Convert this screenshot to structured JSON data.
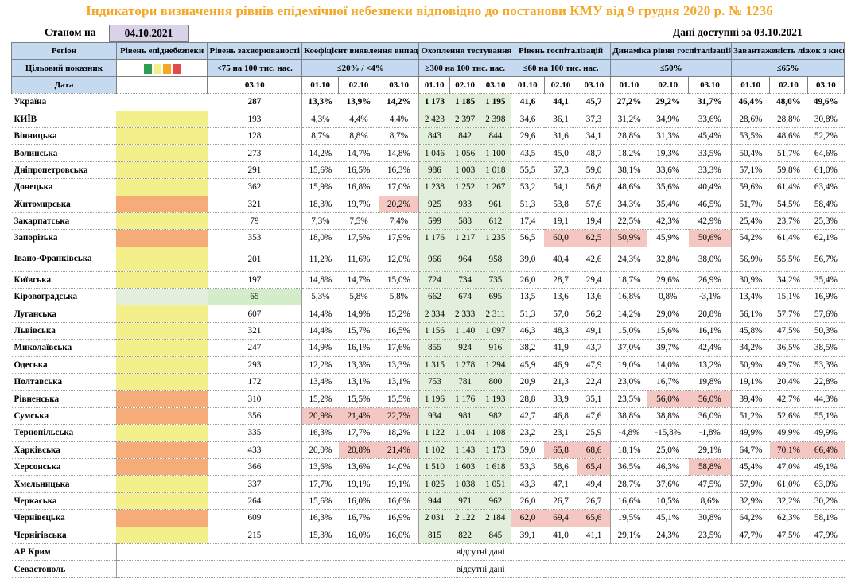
{
  "title": "Індикатори визначення рівнів епідемічної небезпеки відповідно до постанови КМУ від 9 грудня 2020 р. № 1236",
  "as_of_label": "Станом на",
  "as_of_date": "04.10.2021",
  "data_available": "Дані доступні за  03.10.2021",
  "headers": {
    "region": "Регіон",
    "level": "Рівень епіднебезпеки",
    "incidence": "Рівень захворюваності",
    "detection": "Коефіцієнт виявлення випадків інфікування",
    "testing": "Охоплення тестуванням",
    "hosp": "Рівень госпіталізацій",
    "hosp_dyn": "Динаміка рівня госпіталізацій",
    "beds": "Завантаженість ліжок з киснем"
  },
  "targets": {
    "label": "Цільовий показник",
    "incidence": "<75 на 100 тис. нас.",
    "detection": "≤20% / <4%",
    "testing": "≥300 на 100 тис. нас.",
    "hosp": "≤60 на 100 тис. нас.",
    "hosp_dyn": "≤50%",
    "beds": "≤65%"
  },
  "level_colors": [
    "#2e9e4f",
    "#f3f08c",
    "#f5a623",
    "#e34b4b"
  ],
  "dates": {
    "label": "Дата",
    "incidence": "03.10",
    "three": [
      "01.10",
      "02.10",
      "03.10"
    ]
  },
  "colors": {
    "title": "#f5a623",
    "yellow": "#f3f08c",
    "orange": "#f5ac79",
    "green": "#d3ecc9",
    "red": "#f4c7c3",
    "test_bg": "#e2efda",
    "header": "#c5d9f1"
  },
  "ukraine": {
    "name": "Україна",
    "inc": "287",
    "det": [
      "13,3%",
      "13,9%",
      "14,2%"
    ],
    "test": [
      "1 173",
      "1 185",
      "1 195"
    ],
    "hosp": [
      "41,6",
      "44,1",
      "45,7"
    ],
    "dyn": [
      "27,2%",
      "29,2%",
      "31,7%"
    ],
    "beds": [
      "46,4%",
      "48,0%",
      "49,6%"
    ]
  },
  "regions": [
    {
      "name": "КИЇВ",
      "lvl": "y",
      "inc": "193",
      "det": [
        "4,3%",
        "4,4%",
        "4,4%"
      ],
      "test": [
        "2 423",
        "2 397",
        "2 398"
      ],
      "hosp": [
        "34,6",
        "36,1",
        "37,3"
      ],
      "dyn": [
        "31,2%",
        "34,9%",
        "33,6%"
      ],
      "beds": [
        "28,6%",
        "28,8%",
        "30,8%"
      ]
    },
    {
      "name": "Вінницька",
      "lvl": "y",
      "inc": "128",
      "det": [
        "8,7%",
        "8,8%",
        "8,7%"
      ],
      "test": [
        "843",
        "842",
        "844"
      ],
      "hosp": [
        "29,6",
        "31,6",
        "34,1"
      ],
      "dyn": [
        "28,8%",
        "31,3%",
        "45,4%"
      ],
      "beds": [
        "53,5%",
        "48,6%",
        "52,2%"
      ]
    },
    {
      "name": "Волинська",
      "lvl": "y",
      "inc": "273",
      "det": [
        "14,2%",
        "14,7%",
        "14,8%"
      ],
      "test": [
        "1 046",
        "1 056",
        "1 100"
      ],
      "hosp": [
        "43,5",
        "45,0",
        "48,7"
      ],
      "dyn": [
        "18,2%",
        "19,3%",
        "33,5%"
      ],
      "beds": [
        "50,4%",
        "51,7%",
        "64,6%"
      ]
    },
    {
      "name": "Дніпропетровська",
      "lvl": "y",
      "inc": "291",
      "det": [
        "15,6%",
        "16,5%",
        "16,3%"
      ],
      "test": [
        "986",
        "1 003",
        "1 018"
      ],
      "hosp": [
        "55,5",
        "57,3",
        "59,0"
      ],
      "dyn": [
        "38,1%",
        "33,6%",
        "33,3%"
      ],
      "beds": [
        "57,1%",
        "59,8%",
        "61,0%"
      ]
    },
    {
      "name": "Донецька",
      "lvl": "y",
      "inc": "362",
      "det": [
        "15,9%",
        "16,8%",
        "17,0%"
      ],
      "test": [
        "1 238",
        "1 252",
        "1 267"
      ],
      "hosp": [
        "53,2",
        "54,1",
        "56,8"
      ],
      "dyn": [
        "48,6%",
        "35,6%",
        "40,4%"
      ],
      "beds": [
        "59,6%",
        "61,4%",
        "63,4%"
      ]
    },
    {
      "name": "Житомирська",
      "lvl": "o",
      "inc": "321",
      "det": [
        "18,3%",
        "19,7%",
        "20,2%"
      ],
      "detHi": [
        false,
        false,
        true
      ],
      "test": [
        "925",
        "933",
        "961"
      ],
      "hosp": [
        "51,3",
        "53,8",
        "57,6"
      ],
      "dyn": [
        "34,3%",
        "35,4%",
        "46,5%"
      ],
      "beds": [
        "51,7%",
        "54,5%",
        "58,4%"
      ]
    },
    {
      "name": "Закарпатська",
      "lvl": "y",
      "inc": "79",
      "det": [
        "7,3%",
        "7,5%",
        "7,4%"
      ],
      "test": [
        "599",
        "588",
        "612"
      ],
      "hosp": [
        "17,4",
        "19,1",
        "19,4"
      ],
      "dyn": [
        "22,5%",
        "42,3%",
        "42,9%"
      ],
      "beds": [
        "25,4%",
        "23,7%",
        "25,3%"
      ]
    },
    {
      "name": "Запорізька",
      "lvl": "o",
      "inc": "353",
      "det": [
        "18,0%",
        "17,5%",
        "17,9%"
      ],
      "test": [
        "1 176",
        "1 217",
        "1 235"
      ],
      "hosp": [
        "56,5",
        "60,0",
        "62,5"
      ],
      "hospHi": [
        false,
        true,
        true
      ],
      "dyn": [
        "50,9%",
        "45,9%",
        "50,6%"
      ],
      "dynHi": [
        true,
        false,
        true
      ],
      "beds": [
        "54,2%",
        "61,4%",
        "62,1%"
      ]
    },
    {
      "name": "Івано-Франківська",
      "lvl": "y",
      "tall": true,
      "inc": "201",
      "det": [
        "11,2%",
        "11,6%",
        "12,0%"
      ],
      "test": [
        "966",
        "964",
        "958"
      ],
      "hosp": [
        "39,0",
        "40,4",
        "42,6"
      ],
      "dyn": [
        "24,3%",
        "32,8%",
        "38,0%"
      ],
      "beds": [
        "56,9%",
        "55,5%",
        "56,7%"
      ]
    },
    {
      "name": "Київська",
      "lvl": "y",
      "inc": "197",
      "det": [
        "14,8%",
        "14,7%",
        "15,0%"
      ],
      "test": [
        "724",
        "734",
        "735"
      ],
      "hosp": [
        "26,0",
        "28,7",
        "29,4"
      ],
      "dyn": [
        "18,7%",
        "29,6%",
        "26,9%"
      ],
      "beds": [
        "30,9%",
        "34,2%",
        "35,4%"
      ]
    },
    {
      "name": "Кіровоградська",
      "lvl": "g",
      "incHi": true,
      "inc": "65",
      "det": [
        "5,3%",
        "5,8%",
        "5,8%"
      ],
      "test": [
        "662",
        "674",
        "695"
      ],
      "hosp": [
        "13,5",
        "13,6",
        "13,6"
      ],
      "dyn": [
        "16,8%",
        "0,8%",
        "-3,1%"
      ],
      "beds": [
        "13,4%",
        "15,1%",
        "16,9%"
      ]
    },
    {
      "name": "Луганська",
      "lvl": "y",
      "inc": "607",
      "det": [
        "14,4%",
        "14,9%",
        "15,2%"
      ],
      "test": [
        "2 334",
        "2 333",
        "2 311"
      ],
      "hosp": [
        "51,3",
        "57,0",
        "56,2"
      ],
      "dyn": [
        "14,2%",
        "29,0%",
        "20,8%"
      ],
      "beds": [
        "56,1%",
        "57,7%",
        "57,6%"
      ]
    },
    {
      "name": "Львівська",
      "lvl": "y",
      "inc": "321",
      "det": [
        "14,4%",
        "15,7%",
        "16,5%"
      ],
      "test": [
        "1 156",
        "1 140",
        "1 097"
      ],
      "hosp": [
        "46,3",
        "48,3",
        "49,1"
      ],
      "dyn": [
        "15,0%",
        "15,6%",
        "16,1%"
      ],
      "beds": [
        "45,8%",
        "47,5%",
        "50,3%"
      ]
    },
    {
      "name": "Миколаївська",
      "lvl": "y",
      "inc": "247",
      "det": [
        "14,9%",
        "16,1%",
        "17,6%"
      ],
      "test": [
        "855",
        "924",
        "916"
      ],
      "hosp": [
        "38,2",
        "41,9",
        "43,7"
      ],
      "dyn": [
        "37,0%",
        "39,7%",
        "42,4%"
      ],
      "beds": [
        "34,2%",
        "36,5%",
        "38,5%"
      ]
    },
    {
      "name": "Одеська",
      "lvl": "y",
      "inc": "293",
      "det": [
        "12,2%",
        "13,3%",
        "13,3%"
      ],
      "test": [
        "1 315",
        "1 278",
        "1 294"
      ],
      "hosp": [
        "45,9",
        "46,9",
        "47,9"
      ],
      "dyn": [
        "19,0%",
        "14,0%",
        "13,2%"
      ],
      "beds": [
        "50,9%",
        "49,7%",
        "53,3%"
      ]
    },
    {
      "name": "Полтавська",
      "lvl": "y",
      "inc": "172",
      "det": [
        "13,4%",
        "13,1%",
        "13,1%"
      ],
      "test": [
        "753",
        "781",
        "800"
      ],
      "hosp": [
        "20,9",
        "21,3",
        "22,4"
      ],
      "dyn": [
        "23,0%",
        "16,7%",
        "19,8%"
      ],
      "beds": [
        "19,1%",
        "20,4%",
        "22,8%"
      ]
    },
    {
      "name": "Рівненська",
      "lvl": "o",
      "inc": "310",
      "det": [
        "15,2%",
        "15,5%",
        "15,5%"
      ],
      "test": [
        "1 196",
        "1 176",
        "1 193"
      ],
      "hosp": [
        "28,8",
        "33,9",
        "35,1"
      ],
      "dyn": [
        "23,5%",
        "56,0%",
        "56,0%"
      ],
      "dynHi": [
        false,
        true,
        true
      ],
      "beds": [
        "39,4%",
        "42,7%",
        "44,3%"
      ]
    },
    {
      "name": "Сумська",
      "lvl": "o",
      "inc": "356",
      "det": [
        "20,9%",
        "21,4%",
        "22,7%"
      ],
      "detHi": [
        true,
        true,
        true
      ],
      "test": [
        "934",
        "981",
        "982"
      ],
      "hosp": [
        "42,7",
        "46,8",
        "47,6"
      ],
      "dyn": [
        "38,8%",
        "38,8%",
        "36,0%"
      ],
      "beds": [
        "51,2%",
        "52,6%",
        "55,1%"
      ]
    },
    {
      "name": "Тернопільська",
      "lvl": "y",
      "inc": "335",
      "det": [
        "16,3%",
        "17,7%",
        "18,2%"
      ],
      "test": [
        "1 122",
        "1 104",
        "1 108"
      ],
      "hosp": [
        "23,2",
        "23,1",
        "25,9"
      ],
      "dyn": [
        "-4,8%",
        "-15,8%",
        "-1,8%"
      ],
      "beds": [
        "49,9%",
        "49,9%",
        "49,9%"
      ]
    },
    {
      "name": "Харківська",
      "lvl": "o",
      "inc": "433",
      "det": [
        "20,0%",
        "20,8%",
        "21,4%"
      ],
      "detHi": [
        false,
        true,
        true
      ],
      "test": [
        "1 102",
        "1 143",
        "1 173"
      ],
      "hosp": [
        "59,0",
        "65,8",
        "68,6"
      ],
      "hospHi": [
        false,
        true,
        true
      ],
      "dyn": [
        "18,1%",
        "25,0%",
        "29,1%"
      ],
      "beds": [
        "64,7%",
        "70,1%",
        "66,4%"
      ],
      "bedsHi": [
        false,
        true,
        true
      ]
    },
    {
      "name": "Херсонська",
      "lvl": "o",
      "inc": "366",
      "det": [
        "13,6%",
        "13,6%",
        "14,0%"
      ],
      "test": [
        "1 510",
        "1 603",
        "1 618"
      ],
      "hosp": [
        "53,3",
        "58,6",
        "65,4"
      ],
      "hospHi": [
        false,
        false,
        true
      ],
      "dyn": [
        "36,5%",
        "46,3%",
        "58,8%"
      ],
      "dynHi": [
        false,
        false,
        true
      ],
      "beds": [
        "45,4%",
        "47,0%",
        "49,1%"
      ]
    },
    {
      "name": "Хмельницька",
      "lvl": "y",
      "inc": "337",
      "det": [
        "17,7%",
        "19,1%",
        "19,1%"
      ],
      "test": [
        "1 025",
        "1 038",
        "1 051"
      ],
      "hosp": [
        "43,3",
        "47,1",
        "49,4"
      ],
      "dyn": [
        "28,7%",
        "37,6%",
        "47,5%"
      ],
      "beds": [
        "57,9%",
        "61,0%",
        "63,0%"
      ]
    },
    {
      "name": "Черкаська",
      "lvl": "y",
      "inc": "264",
      "det": [
        "15,6%",
        "16,0%",
        "16,6%"
      ],
      "test": [
        "944",
        "971",
        "962"
      ],
      "hosp": [
        "26,0",
        "26,7",
        "26,7"
      ],
      "dyn": [
        "16,6%",
        "10,5%",
        "8,6%"
      ],
      "beds": [
        "32,9%",
        "32,2%",
        "30,2%"
      ]
    },
    {
      "name": "Чернівецька",
      "lvl": "o",
      "inc": "609",
      "det": [
        "16,3%",
        "16,7%",
        "16,9%"
      ],
      "test": [
        "2 031",
        "2 122",
        "2 184"
      ],
      "hosp": [
        "62,0",
        "69,4",
        "65,6"
      ],
      "hospHi": [
        true,
        true,
        true
      ],
      "dyn": [
        "19,5%",
        "45,1%",
        "30,8%"
      ],
      "beds": [
        "64,2%",
        "62,3%",
        "58,1%"
      ]
    },
    {
      "name": "Чернігівська",
      "lvl": "y",
      "inc": "215",
      "det": [
        "15,3%",
        "16,0%",
        "16,0%"
      ],
      "test": [
        "815",
        "822",
        "845"
      ],
      "hosp": [
        "39,1",
        "41,0",
        "41,1"
      ],
      "dyn": [
        "29,1%",
        "24,3%",
        "23,5%"
      ],
      "beds": [
        "47,7%",
        "47,5%",
        "47,9%"
      ]
    }
  ],
  "missing": [
    {
      "name": "АР Крим",
      "text": "відсутні дані"
    },
    {
      "name": "Севастополь",
      "text": "відсутні дані"
    }
  ]
}
